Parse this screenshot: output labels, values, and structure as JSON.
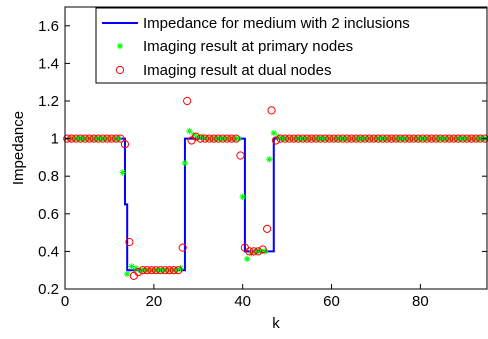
{
  "chart_data": {
    "type": "line",
    "xlabel": "k",
    "ylabel": "Impedance",
    "xlim": [
      0,
      95
    ],
    "ylim": [
      0.2,
      1.7
    ],
    "xticks": [
      0,
      20,
      40,
      60,
      80
    ],
    "yticks": [
      0.2,
      0.4,
      0.6,
      0.8,
      1.0,
      1.2,
      1.4,
      1.6
    ],
    "xtick_labels": [
      "0",
      "20",
      "40",
      "60",
      "80"
    ],
    "ytick_labels": [
      "0.2",
      "0.4",
      "0.6",
      "0.8",
      "1",
      "1.2",
      "1.4",
      "1.6"
    ],
    "grid": false,
    "legend_position": "top-right",
    "series": [
      {
        "name": "Impedance for medium with 2 inclusions",
        "style": "line",
        "color": "#0000ff",
        "x": [
          0,
          13.5,
          13.5,
          14,
          14,
          27,
          27,
          40.5,
          40.5,
          47,
          47,
          95
        ],
        "y": [
          1,
          1,
          0.65,
          0.65,
          0.3,
          0.3,
          1,
          1,
          0.4,
          0.4,
          1,
          1
        ]
      },
      {
        "name": "Imaging result at primary nodes",
        "style": "marker-star",
        "color": "#00ff00",
        "x": [
          1,
          2,
          3,
          4,
          5,
          6,
          7,
          8,
          9,
          10,
          11,
          12,
          13,
          14,
          15,
          16,
          17,
          18,
          19,
          20,
          21,
          22,
          23,
          24,
          25,
          26,
          27,
          28,
          29,
          30,
          31,
          32,
          33,
          34,
          35,
          36,
          37,
          38,
          39,
          40,
          41,
          42,
          43,
          44,
          45,
          46,
          47,
          48,
          49,
          50,
          51,
          52,
          53,
          54,
          55,
          56,
          57,
          58,
          59,
          60,
          61,
          62,
          63,
          64,
          65,
          66,
          67,
          68,
          69,
          70,
          71,
          72,
          73,
          74,
          75,
          76,
          77,
          78,
          79,
          80,
          81,
          82,
          83,
          84,
          85,
          86,
          87,
          88,
          89,
          90,
          91,
          92,
          93,
          94,
          95
        ],
        "y": [
          1,
          1,
          1,
          1,
          1,
          1,
          1,
          1,
          1,
          1,
          1,
          1,
          0.82,
          0.28,
          0.32,
          0.31,
          0.3,
          0.3,
          0.3,
          0.3,
          0.3,
          0.3,
          0.3,
          0.3,
          0.3,
          0.31,
          0.87,
          1.04,
          1.02,
          1.01,
          1.01,
          1,
          1,
          1,
          1,
          1,
          1,
          1,
          1,
          0.69,
          0.36,
          0.39,
          0.4,
          0.4,
          0.4,
          0.89,
          1.03,
          1.01,
          1,
          1,
          1,
          1,
          1,
          1,
          1,
          1,
          1,
          1,
          1,
          1,
          1,
          1,
          1,
          1,
          1,
          1,
          1,
          1,
          1,
          1,
          1,
          1,
          1,
          1,
          1,
          1,
          1,
          1,
          1,
          1,
          1,
          1,
          1,
          1,
          1,
          1,
          1,
          1,
          1,
          1,
          1,
          1,
          1,
          1,
          1
        ]
      },
      {
        "name": "Imaging result at dual nodes",
        "style": "marker-circle",
        "color": "#ff0000",
        "x": [
          0.5,
          1.5,
          2.5,
          3.5,
          4.5,
          5.5,
          6.5,
          7.5,
          8.5,
          9.5,
          10.5,
          11.5,
          12.5,
          13.5,
          14.5,
          15.5,
          16.5,
          17.5,
          18.5,
          19.5,
          20.5,
          21.5,
          22.5,
          23.5,
          24.5,
          25.5,
          26.5,
          27.5,
          28.5,
          29.5,
          30.5,
          31.5,
          32.5,
          33.5,
          34.5,
          35.5,
          36.5,
          37.5,
          38.5,
          39.5,
          40.5,
          41.5,
          42.5,
          43.5,
          44.5,
          45.5,
          46.5,
          47.5,
          48.5,
          49.5,
          50.5,
          51.5,
          52.5,
          53.5,
          54.5,
          55.5,
          56.5,
          57.5,
          58.5,
          59.5,
          60.5,
          61.5,
          62.5,
          63.5,
          64.5,
          65.5,
          66.5,
          67.5,
          68.5,
          69.5,
          70.5,
          71.5,
          72.5,
          73.5,
          74.5,
          75.5,
          76.5,
          77.5,
          78.5,
          79.5,
          80.5,
          81.5,
          82.5,
          83.5,
          84.5,
          85.5,
          86.5,
          87.5,
          88.5,
          89.5,
          90.5,
          91.5,
          92.5,
          93.5,
          94.5
        ],
        "y": [
          1,
          1,
          1,
          1,
          1,
          1,
          1,
          1,
          1,
          1,
          1,
          1,
          1,
          0.97,
          0.45,
          0.27,
          0.29,
          0.3,
          0.3,
          0.3,
          0.3,
          0.3,
          0.3,
          0.3,
          0.3,
          0.3,
          0.42,
          1.2,
          0.99,
          1.01,
          1,
          1,
          1,
          1,
          1,
          1,
          1,
          1,
          1,
          0.91,
          0.42,
          0.4,
          0.4,
          0.4,
          0.41,
          0.52,
          1.15,
          0.99,
          1,
          1,
          1,
          1,
          1,
          1,
          1,
          1,
          1,
          1,
          1,
          1,
          1,
          1,
          1,
          1,
          1,
          1,
          1,
          1,
          1,
          1,
          1,
          1,
          1,
          1,
          1,
          1,
          1,
          1,
          1,
          1,
          1,
          1,
          1,
          1,
          1,
          1,
          1,
          1,
          1,
          1,
          1,
          1,
          1,
          1,
          1
        ]
      }
    ]
  }
}
